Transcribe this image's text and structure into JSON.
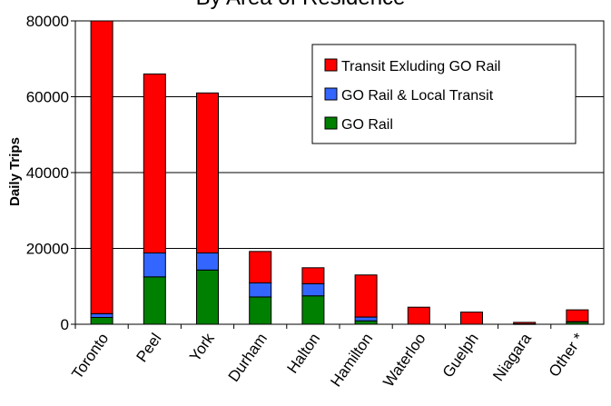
{
  "chart_data": {
    "type": "bar",
    "stacked": true,
    "title": "By Area of Residence",
    "xlabel": "",
    "ylabel": "Daily Trips",
    "ylim": [
      0,
      80000
    ],
    "yticks": [
      "0",
      "20000",
      "40000",
      "60000",
      "80000"
    ],
    "categories": [
      "Toronto",
      "Peel",
      "York",
      "Durham",
      "Halton",
      "Hamilton",
      "Waterloo",
      "Guelph",
      "Niagara",
      "Other *"
    ],
    "series": [
      {
        "name": "GO Rail",
        "color": "#008000",
        "values": [
          1800,
          12500,
          14300,
          7200,
          7500,
          900,
          0,
          0,
          100,
          600
        ]
      },
      {
        "name": "GO Rail & Local Transit",
        "color": "#3366ff",
        "values": [
          1000,
          6300,
          4500,
          3700,
          3200,
          1000,
          0,
          0,
          0,
          100
        ]
      },
      {
        "name": "Transit Exluding GO Rail",
        "color": "#ff0000",
        "values": [
          77200,
          47200,
          42200,
          8300,
          4200,
          11100,
          4500,
          3200,
          400,
          3100
        ]
      }
    ],
    "legend": "top-right",
    "grid": true
  }
}
